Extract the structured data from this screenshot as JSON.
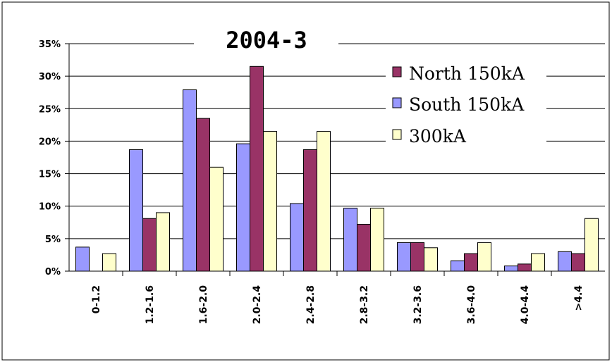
{
  "chart_data": {
    "type": "bar",
    "title": "2004-3",
    "xlabel": "",
    "ylabel": "",
    "categories": [
      "0-1.2",
      "1.2-1.6",
      "1.6-2.0",
      "2.0-2.4",
      "2.4-2.8",
      "2.8-3.2",
      "3.2-3.6",
      "3.6-4.0",
      "4.0-4.4",
      ">4.4"
    ],
    "series": [
      {
        "name": "South 150kA",
        "color": "#9999ff",
        "values": [
          3.7,
          18.7,
          27.9,
          19.6,
          10.4,
          9.7,
          4.4,
          1.6,
          0.8,
          3.0
        ]
      },
      {
        "name": "North 150kA",
        "color": "#993366",
        "values": [
          0,
          8.1,
          23.5,
          31.5,
          18.7,
          7.2,
          4.4,
          2.7,
          1.1,
          2.7
        ]
      },
      {
        "name": "300kA",
        "color": "#ffffcc",
        "values": [
          2.7,
          9.0,
          16.0,
          21.5,
          21.5,
          9.7,
          3.6,
          4.4,
          2.7,
          8.1
        ]
      }
    ],
    "legend_order": [
      "North 150kA",
      "South 150kA",
      "300kA"
    ],
    "ylim": [
      0,
      35
    ],
    "yticks": [
      0,
      5,
      10,
      15,
      20,
      25,
      30,
      35
    ],
    "ytick_labels": [
      "0%",
      "5%",
      "10%",
      "15%",
      "20%",
      "25%",
      "30%",
      "35%"
    ],
    "grid": true,
    "legend_position": "top-right"
  }
}
